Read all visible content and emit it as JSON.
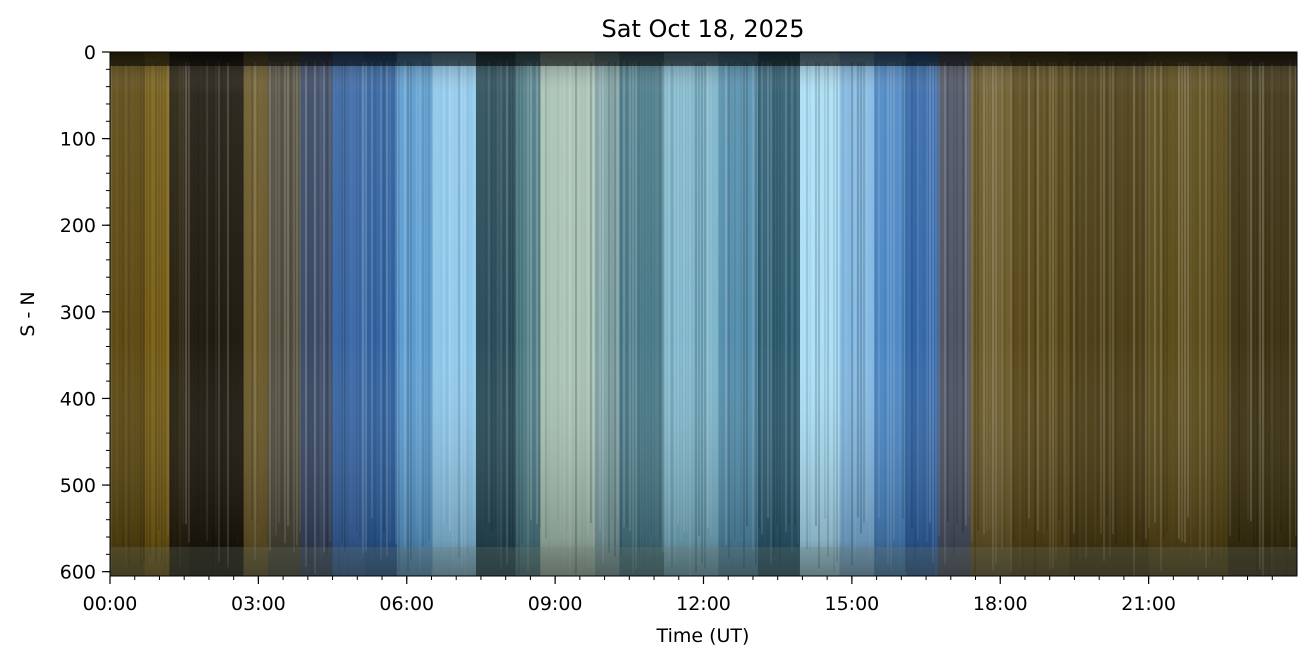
{
  "chart_data": {
    "type": "heatmap",
    "title": "Sat Oct 18, 2025",
    "xlabel": "Time (UT)",
    "ylabel": "S - N",
    "xlim_hours": [
      0,
      24
    ],
    "ylim": [
      0,
      605
    ],
    "y_inverted": true,
    "x_ticks": [
      {
        "hour": 0,
        "label": "00:00"
      },
      {
        "hour": 3,
        "label": "03:00"
      },
      {
        "hour": 6,
        "label": "06:00"
      },
      {
        "hour": 9,
        "label": "09:00"
      },
      {
        "hour": 12,
        "label": "12:00"
      },
      {
        "hour": 15,
        "label": "15:00"
      },
      {
        "hour": 18,
        "label": "18:00"
      },
      {
        "hour": 21,
        "label": "21:00"
      }
    ],
    "x_minor_step_hours": 0.5,
    "y_ticks": [
      {
        "value": 0,
        "label": "0"
      },
      {
        "value": 100,
        "label": "100"
      },
      {
        "value": 200,
        "label": "200"
      },
      {
        "value": 300,
        "label": "300"
      },
      {
        "value": 400,
        "label": "400"
      },
      {
        "value": 500,
        "label": "500"
      },
      {
        "value": 600,
        "label": "600"
      }
    ],
    "y_minor_step": 20,
    "bands": [
      {
        "start": 0.0,
        "end": 0.7,
        "color": "#5e4a12"
      },
      {
        "start": 0.7,
        "end": 1.2,
        "color": "#7a6016"
      },
      {
        "start": 1.2,
        "end": 1.6,
        "color": "#2a2210"
      },
      {
        "start": 1.6,
        "end": 2.7,
        "color": "#1f1a0f"
      },
      {
        "start": 2.7,
        "end": 3.2,
        "color": "#6b5a2a"
      },
      {
        "start": 3.2,
        "end": 3.85,
        "color": "#4e4a3a"
      },
      {
        "start": 3.85,
        "end": 4.5,
        "color": "#3b4a66"
      },
      {
        "start": 4.5,
        "end": 5.15,
        "color": "#3a68a6"
      },
      {
        "start": 5.15,
        "end": 5.8,
        "color": "#2d5f9e"
      },
      {
        "start": 5.8,
        "end": 6.5,
        "color": "#5d9fd3"
      },
      {
        "start": 6.5,
        "end": 7.4,
        "color": "#8cc7ea"
      },
      {
        "start": 7.4,
        "end": 8.2,
        "color": "#2a4e5c"
      },
      {
        "start": 8.2,
        "end": 8.7,
        "color": "#4f7d86"
      },
      {
        "start": 8.7,
        "end": 9.8,
        "color": "#a8c2b4"
      },
      {
        "start": 9.8,
        "end": 10.3,
        "color": "#7fa3a6"
      },
      {
        "start": 10.3,
        "end": 11.2,
        "color": "#4b7c8a"
      },
      {
        "start": 11.2,
        "end": 12.3,
        "color": "#7ab3c8"
      },
      {
        "start": 12.3,
        "end": 13.1,
        "color": "#5590ae"
      },
      {
        "start": 13.1,
        "end": 13.95,
        "color": "#2e5e73"
      },
      {
        "start": 13.95,
        "end": 14.75,
        "color": "#a9def5"
      },
      {
        "start": 14.75,
        "end": 15.45,
        "color": "#7fb6e0"
      },
      {
        "start": 15.45,
        "end": 16.1,
        "color": "#4b87c4"
      },
      {
        "start": 16.1,
        "end": 16.75,
        "color": "#3266a8"
      },
      {
        "start": 16.75,
        "end": 17.4,
        "color": "#4f5566"
      },
      {
        "start": 17.4,
        "end": 18.2,
        "color": "#6b5a2a"
      },
      {
        "start": 18.2,
        "end": 19.4,
        "color": "#5a4818"
      },
      {
        "start": 19.4,
        "end": 21.0,
        "color": "#4c3e14"
      },
      {
        "start": 21.0,
        "end": 22.6,
        "color": "#5a4a18"
      },
      {
        "start": 22.6,
        "end": 24.0,
        "color": "#3f3412"
      }
    ]
  }
}
